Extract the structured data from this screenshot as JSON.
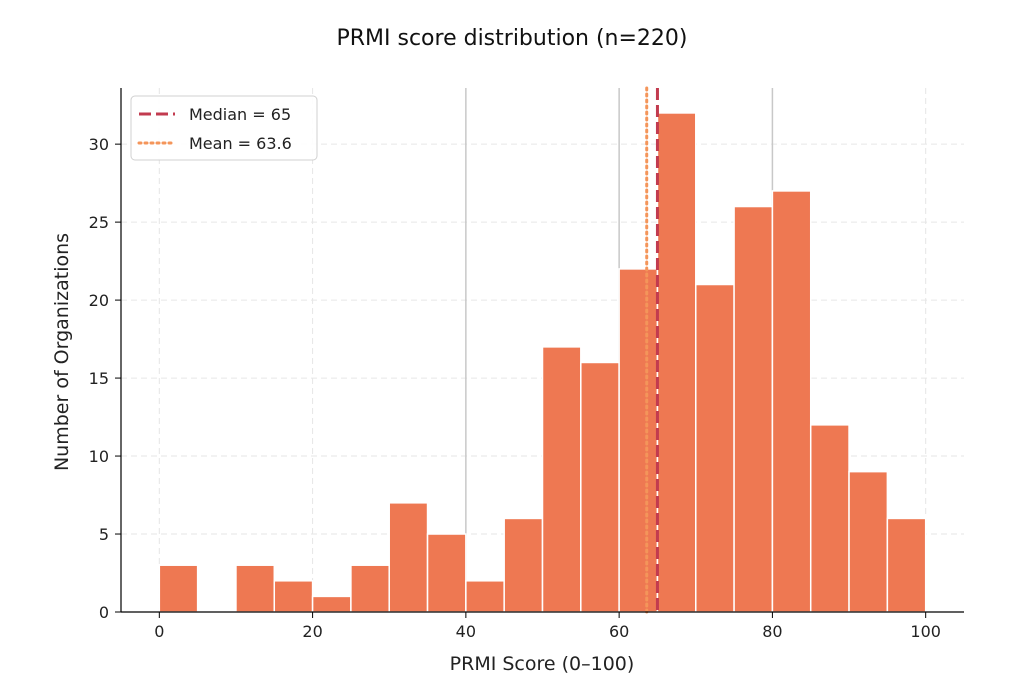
{
  "chart_data": {
    "type": "bar",
    "title": "PRMI score distribution (n=220)",
    "xlabel": "PRMI Score (0–100)",
    "ylabel": "Number of Organizations",
    "xlim": [
      -5,
      105
    ],
    "ylim": [
      0,
      33.6
    ],
    "xticks": [
      0,
      20,
      40,
      60,
      80,
      100
    ],
    "yticks": [
      0,
      5,
      10,
      15,
      20,
      25,
      30
    ],
    "grid": true,
    "legend_position": "top-left",
    "bin_width": 5,
    "bins": [
      {
        "x0": 0,
        "count": 3
      },
      {
        "x0": 5,
        "count": 0
      },
      {
        "x0": 10,
        "count": 3
      },
      {
        "x0": 15,
        "count": 2
      },
      {
        "x0": 20,
        "count": 1
      },
      {
        "x0": 25,
        "count": 3
      },
      {
        "x0": 30,
        "count": 7
      },
      {
        "x0": 35,
        "count": 5
      },
      {
        "x0": 40,
        "count": 2
      },
      {
        "x0": 45,
        "count": 6
      },
      {
        "x0": 50,
        "count": 17
      },
      {
        "x0": 55,
        "count": 16
      },
      {
        "x0": 60,
        "count": 22
      },
      {
        "x0": 65,
        "count": 32
      },
      {
        "x0": 70,
        "count": 21
      },
      {
        "x0": 75,
        "count": 26
      },
      {
        "x0": 80,
        "count": 27
      },
      {
        "x0": 85,
        "count": 12
      },
      {
        "x0": 90,
        "count": 9
      },
      {
        "x0": 95,
        "count": 6
      }
    ],
    "reference_lines": [
      40,
      60,
      80
    ],
    "median": {
      "label": "Median = 65",
      "value": 65,
      "color": "#c23b4f"
    },
    "mean": {
      "label": "Mean = 63.6",
      "value": 63.6,
      "color": "#f4955a"
    },
    "colors": {
      "bar": "#ee7852",
      "bar_edge": "#ffffff",
      "grid": "#e6e6e6",
      "reference": "#c8c8c8"
    }
  }
}
